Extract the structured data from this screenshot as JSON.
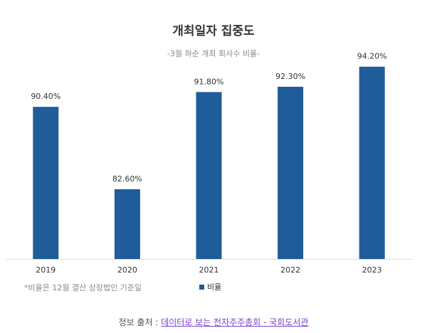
{
  "chart_data": {
    "type": "bar",
    "title": "개최일자 집중도",
    "subtitle": "-3월 하순 개최 회사수 비율-",
    "categories": [
      "2019",
      "2020",
      "2021",
      "2022",
      "2023"
    ],
    "series": [
      {
        "name": "비율",
        "color": "#1f5c99",
        "values": [
          90.4,
          82.6,
          91.8,
          92.3,
          94.2
        ],
        "value_labels": [
          "90.40%",
          "82.60%",
          "91.80%",
          "92.30%",
          "94.20%"
        ]
      }
    ],
    "ylim": [
      76,
      96
    ],
    "grid": false,
    "footnote": "*비율은 12월 결산 상장법인 기준일"
  },
  "source": {
    "label": "정보 출처 : ",
    "link": "데이터로 보는 전자주주총회 - 국회도서관"
  }
}
